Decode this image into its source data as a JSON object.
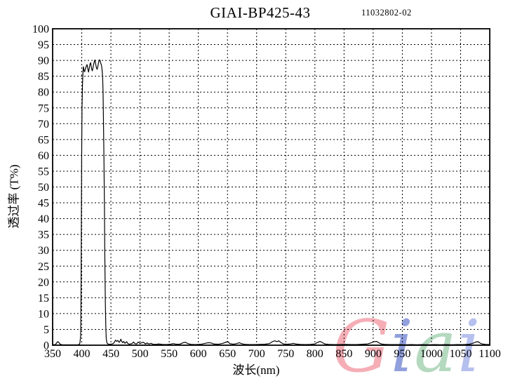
{
  "header": {
    "title": "GIAI-BP425-43",
    "serial": "11032802-02"
  },
  "watermark": {
    "text": "Giai",
    "letters": [
      {
        "char": "G",
        "color": "#f4a0aa"
      },
      {
        "char": "i",
        "color": "#7e8fd8"
      },
      {
        "char": "a",
        "color": "#a8d3b4"
      },
      {
        "char": "i",
        "color": "#aab6ec"
      }
    ]
  },
  "chart_data": {
    "type": "line",
    "title": "GIAI-BP425-43",
    "xlabel": "波长(nm)",
    "ylabel": "透过率 (T%)",
    "xlim": [
      350,
      1100
    ],
    "ylim": [
      0,
      100
    ],
    "x_ticks": [
      350,
      400,
      450,
      500,
      550,
      600,
      650,
      700,
      750,
      800,
      850,
      900,
      950,
      1000,
      1050,
      1100
    ],
    "y_ticks": [
      0,
      5,
      10,
      15,
      20,
      25,
      30,
      35,
      40,
      45,
      50,
      55,
      60,
      65,
      70,
      75,
      80,
      85,
      90,
      95,
      100
    ],
    "grid": "dashed",
    "grid_color": "#000000",
    "line_color": "#000000",
    "legend": "none",
    "description": "Bandpass filter transmission spectrum: ~90% passband 400-440 nm with ripple, blocked (<2%) elsewhere 350-1100 nm",
    "series": [
      {
        "name": "transmission",
        "points": [
          [
            350,
            0.15
          ],
          [
            355,
            0.2
          ],
          [
            357,
            0.8
          ],
          [
            359,
            1.1
          ],
          [
            361,
            0.8
          ],
          [
            363,
            0.3
          ],
          [
            366,
            0.15
          ],
          [
            372,
            0.1
          ],
          [
            380,
            0.1
          ],
          [
            388,
            0.1
          ],
          [
            394,
            0.15
          ],
          [
            396,
            0.3
          ],
          [
            397,
            0.8
          ],
          [
            398,
            3
          ],
          [
            398.6,
            12
          ],
          [
            399.2,
            35
          ],
          [
            399.8,
            60
          ],
          [
            400.5,
            75
          ],
          [
            401.2,
            82
          ],
          [
            402,
            86
          ],
          [
            402.6,
            88
          ],
          [
            403.4,
            87.3
          ],
          [
            404.2,
            86.6
          ],
          [
            405,
            86.4
          ],
          [
            406,
            87.2
          ],
          [
            407.2,
            87.9
          ],
          [
            408.3,
            88.4
          ],
          [
            409,
            88.7
          ],
          [
            409.8,
            88
          ],
          [
            410.6,
            87.2
          ],
          [
            411.5,
            86.3
          ],
          [
            412.4,
            87
          ],
          [
            413.4,
            88.1
          ],
          [
            414.4,
            89
          ],
          [
            415.2,
            89.3
          ],
          [
            416,
            88.4
          ],
          [
            417,
            87.3
          ],
          [
            418,
            86.7
          ],
          [
            419,
            87.4
          ],
          [
            420,
            88.3
          ],
          [
            421,
            89.3
          ],
          [
            422,
            90
          ],
          [
            422.8,
            90.1
          ],
          [
            423.6,
            89.2
          ],
          [
            424.5,
            88.2
          ],
          [
            425.5,
            87.5
          ],
          [
            426.5,
            87.2
          ],
          [
            427.5,
            88
          ],
          [
            428.5,
            89
          ],
          [
            429.5,
            89.8
          ],
          [
            430.5,
            90.2
          ],
          [
            431.5,
            89.9
          ],
          [
            432.5,
            89.2
          ],
          [
            433.5,
            88.6
          ],
          [
            434.3,
            87.9
          ],
          [
            435,
            86.8
          ],
          [
            435.8,
            84.5
          ],
          [
            436.5,
            80
          ],
          [
            437.2,
            72
          ],
          [
            438,
            60
          ],
          [
            438.8,
            45
          ],
          [
            439.6,
            28
          ],
          [
            440.4,
            14
          ],
          [
            441.2,
            6
          ],
          [
            442,
            2.2
          ],
          [
            442.8,
            1
          ],
          [
            444,
            0.5
          ],
          [
            446,
            0.3
          ],
          [
            450,
            0.3
          ],
          [
            454,
            0.5
          ],
          [
            456,
            1
          ],
          [
            458,
            1.6
          ],
          [
            460,
            1.2
          ],
          [
            462,
            1.5
          ],
          [
            464,
            0.9
          ],
          [
            466,
            1.4
          ],
          [
            467,
            1.9
          ],
          [
            468,
            1.4
          ],
          [
            470,
            0.8
          ],
          [
            472,
            1.2
          ],
          [
            474,
            0.6
          ],
          [
            477,
            1.1
          ],
          [
            479,
            0.5
          ],
          [
            482,
            0.3
          ],
          [
            486,
            0.5
          ],
          [
            489,
            1
          ],
          [
            491,
            0.5
          ],
          [
            494,
            0.4
          ],
          [
            497,
            1
          ],
          [
            500,
            0.5
          ],
          [
            503,
            0.8
          ],
          [
            506,
            0.9
          ],
          [
            509,
            0.4
          ],
          [
            512,
            0.7
          ],
          [
            515,
            0.4
          ],
          [
            519,
            0.6
          ],
          [
            522,
            0.3
          ],
          [
            527,
            0.25
          ],
          [
            532,
            0.4
          ],
          [
            538,
            0.25
          ],
          [
            545,
            0.2
          ],
          [
            552,
            0.3
          ],
          [
            557,
            0.5
          ],
          [
            562,
            0.3
          ],
          [
            568,
            0.3
          ],
          [
            574,
            0.8
          ],
          [
            578,
            0.9
          ],
          [
            582,
            0.5
          ],
          [
            588,
            0.25
          ],
          [
            595,
            0.2
          ],
          [
            605,
            0.3
          ],
          [
            612,
            0.6
          ],
          [
            617,
            0.8
          ],
          [
            622,
            0.7
          ],
          [
            627,
            0.35
          ],
          [
            635,
            0.3
          ],
          [
            642,
            0.6
          ],
          [
            648,
            1
          ],
          [
            651,
            1.1
          ],
          [
            654,
            0.5
          ],
          [
            660,
            0.3
          ],
          [
            666,
            0.5
          ],
          [
            670,
            0.8
          ],
          [
            674,
            0.5
          ],
          [
            680,
            0.25
          ],
          [
            688,
            0.2
          ],
          [
            696,
            0.2
          ],
          [
            705,
            0.25
          ],
          [
            714,
            0.3
          ],
          [
            722,
            0.5
          ],
          [
            727,
            1.1
          ],
          [
            731,
            1.4
          ],
          [
            735,
            1.1
          ],
          [
            738,
            1.4
          ],
          [
            742,
            0.8
          ],
          [
            746,
            0.4
          ],
          [
            752,
            0.3
          ],
          [
            758,
            0.4
          ],
          [
            763,
            0.6
          ],
          [
            768,
            0.35
          ],
          [
            775,
            0.25
          ],
          [
            783,
            0.2
          ],
          [
            792,
            0.25
          ],
          [
            800,
            0.4
          ],
          [
            805,
            0.9
          ],
          [
            809,
            1.2
          ],
          [
            813,
            0.8
          ],
          [
            817,
            0.4
          ],
          [
            824,
            0.25
          ],
          [
            832,
            0.2
          ],
          [
            842,
            0.2
          ],
          [
            852,
            0.25
          ],
          [
            862,
            0.2
          ],
          [
            872,
            0.2
          ],
          [
            882,
            0.3
          ],
          [
            890,
            0.4
          ],
          [
            896,
            0.7
          ],
          [
            901,
            1.1
          ],
          [
            906,
            1.2
          ],
          [
            910,
            0.7
          ],
          [
            914,
            0.4
          ],
          [
            920,
            0.25
          ],
          [
            928,
            0.2
          ],
          [
            937,
            0.2
          ],
          [
            946,
            0.2
          ],
          [
            955,
            0.15
          ],
          [
            965,
            0.2
          ],
          [
            975,
            0.15
          ],
          [
            985,
            0.2
          ],
          [
            995,
            0.15
          ],
          [
            1005,
            0.2
          ],
          [
            1015,
            0.15
          ],
          [
            1025,
            0.2
          ],
          [
            1035,
            0.15
          ],
          [
            1045,
            0.2
          ],
          [
            1055,
            0.2
          ],
          [
            1065,
            0.3
          ],
          [
            1071,
            0.6
          ],
          [
            1076,
            1
          ],
          [
            1080,
            1.1
          ],
          [
            1084,
            0.6
          ],
          [
            1088,
            0.35
          ],
          [
            1093,
            0.25
          ],
          [
            1100,
            0.2
          ]
        ]
      }
    ]
  }
}
